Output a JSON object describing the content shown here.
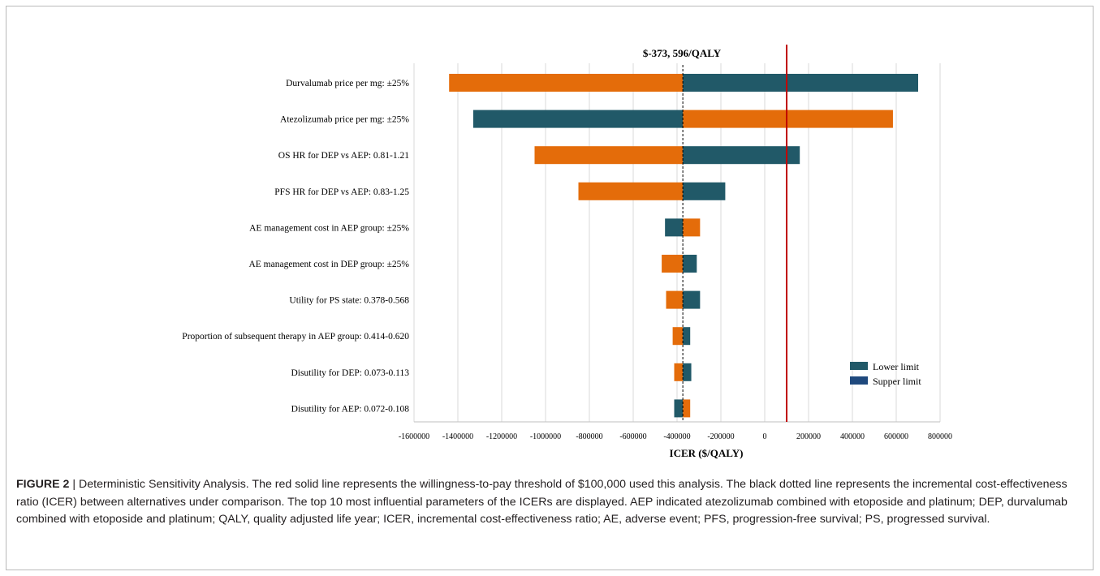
{
  "chart_data": {
    "type": "tornado",
    "title": "$-373, 596/QALY",
    "xlabel": "ICER ($/QALY)",
    "xlim": [
      -1600000,
      800000
    ],
    "xticks": [
      -1600000,
      -1400000,
      -1200000,
      -1000000,
      -800000,
      -600000,
      -400000,
      -200000,
      0,
      200000,
      400000,
      600000,
      800000
    ],
    "xtick_labels": [
      "-1600000",
      "-1400000",
      "-1200000",
      "-1000000",
      "-800000",
      "-600000",
      "-400000",
      "-200000",
      "0",
      "200000",
      "400000",
      "600000",
      "800000"
    ],
    "base_value": -373596,
    "threshold": 100000,
    "grid": true,
    "legend_position": "bottom-right",
    "series": [
      {
        "name": "Lower limit",
        "color": "#215968"
      },
      {
        "name": "Supper limit",
        "color": "#1f497d"
      }
    ],
    "colors": {
      "left_orange": "#e46c0a",
      "teal": "#215968",
      "threshold_line": "#c00000",
      "base_line": "#000000"
    },
    "parameters": [
      {
        "label": "Durvalumab price per mg: ±25%",
        "orange_end": -1440000,
        "teal_end": 700000,
        "orange_side": "left"
      },
      {
        "label": "Atezolizumab price per mg: ±25%",
        "orange_end": 585000,
        "teal_end": -1330000,
        "orange_side": "right"
      },
      {
        "label": "OS HR for DEP vs AEP: 0.81-1.21",
        "orange_end": -1050000,
        "teal_end": 160000,
        "orange_side": "left"
      },
      {
        "label": "PFS HR for DEP vs AEP: 0.83-1.25",
        "orange_end": -850000,
        "teal_end": -180000,
        "orange_side": "left"
      },
      {
        "label": "AE management cost in AEP group: ±25%",
        "orange_end": -295000,
        "teal_end": -455000,
        "orange_side": "right"
      },
      {
        "label": "AE management cost in DEP group: ±25%",
        "orange_end": -470000,
        "teal_end": -310000,
        "orange_side": "left"
      },
      {
        "label": "Utility for PS state: 0.378-0.568",
        "orange_end": -450000,
        "teal_end": -295000,
        "orange_side": "left"
      },
      {
        "label": "Proportion of subsequent therapy in AEP group: 0.414-0.620",
        "orange_end": -420000,
        "teal_end": -340000,
        "orange_side": "left"
      },
      {
        "label": "Disutility for DEP: 0.073-0.113",
        "orange_end": -413000,
        "teal_end": -335000,
        "orange_side": "left"
      },
      {
        "label": "Disutility for AEP: 0.072-0.108",
        "orange_end": -340000,
        "teal_end": -413000,
        "orange_side": "right"
      }
    ]
  },
  "caption": {
    "label": "FIGURE 2",
    "separator": " | ",
    "text": "Deterministic Sensitivity Analysis. The red solid line represents the willingness-to-pay threshold of $100,000 used this analysis. The black dotted line represents the incremental cost-effectiveness ratio (ICER) between alternatives under comparison. The top 10 most influential parameters of the ICERs are displayed. AEP indicated atezolizumab combined with etoposide and platinum; DEP, durvalumab combined with etoposide and platinum; QALY, quality adjusted life year; ICER, incremental cost-effectiveness ratio; AE, adverse event; PFS, progression-free survival; PS, progressed survival."
  }
}
